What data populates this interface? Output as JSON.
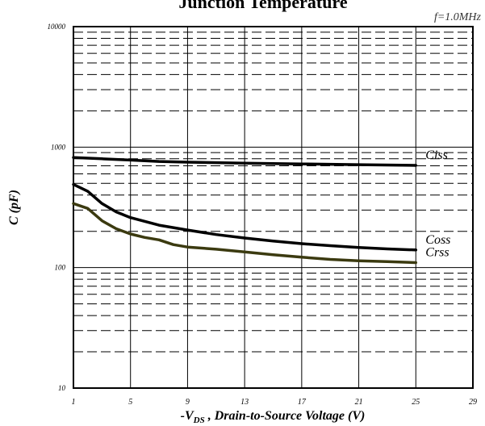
{
  "chart_data": {
    "type": "line",
    "title": "Junction Temperature",
    "annotation": "f=1.0MHz",
    "xlabel": {
      "prefix": "-V",
      "subscript": "DS",
      "suffix": " , Drain-to-Source Voltage (V)"
    },
    "ylabel": "C (pF)",
    "xlim": [
      1,
      29
    ],
    "ylim": [
      10,
      10000
    ],
    "y_scale": "log",
    "x_ticks": [
      1,
      5,
      9,
      13,
      17,
      21,
      25,
      29
    ],
    "y_ticks": [
      10,
      100,
      1000,
      10000
    ],
    "grid": true,
    "series": [
      {
        "name": "Ciss",
        "color": "#000000",
        "x": [
          1,
          2,
          3,
          5,
          7,
          9,
          13,
          17,
          21,
          25
        ],
        "y": [
          820,
          810,
          800,
          780,
          760,
          750,
          735,
          725,
          715,
          705
        ]
      },
      {
        "name": "Coss",
        "color": "#000000",
        "x": [
          1,
          2,
          3,
          4,
          5,
          7,
          9,
          11,
          13,
          15,
          17,
          19,
          21,
          23,
          25
        ],
        "y": [
          490,
          430,
          340,
          290,
          260,
          225,
          205,
          188,
          176,
          166,
          158,
          152,
          147,
          143,
          140
        ]
      },
      {
        "name": "Crss",
        "color": "#3b3a10",
        "x": [
          1,
          2,
          3,
          4,
          5,
          6,
          7,
          8,
          9,
          11,
          13,
          15,
          17,
          19,
          21,
          23,
          25
        ],
        "y": [
          340,
          310,
          245,
          210,
          190,
          178,
          170,
          155,
          148,
          142,
          135,
          128,
          122,
          117,
          114,
          112,
          110
        ]
      }
    ]
  }
}
